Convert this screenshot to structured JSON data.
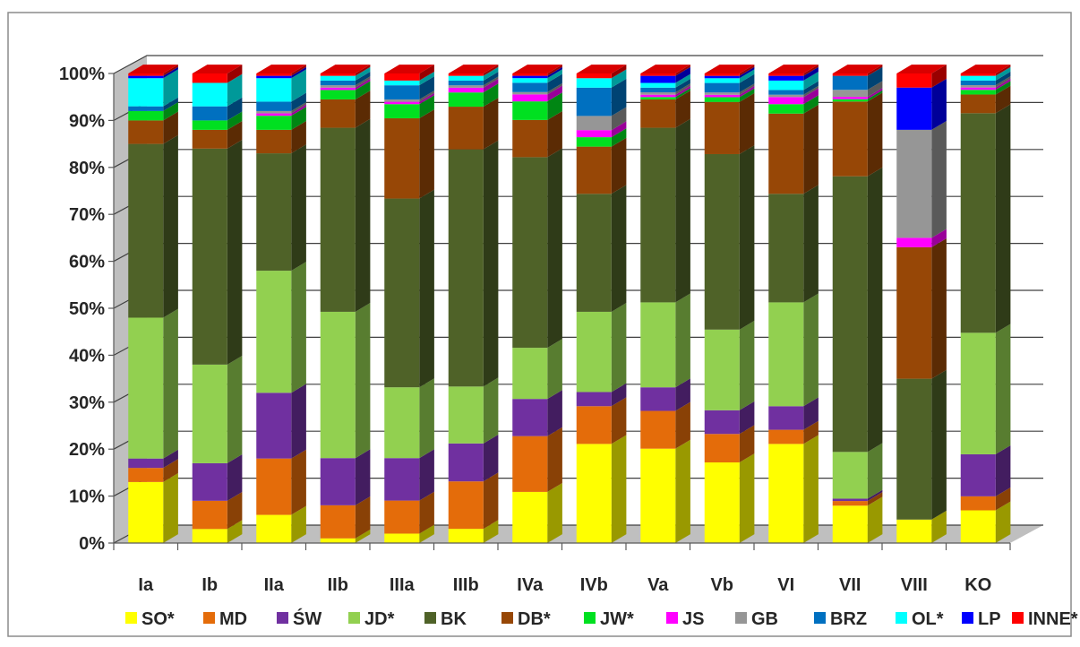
{
  "chart_data": {
    "type": "bar",
    "stacked": true,
    "percent_stacked": true,
    "three_d": true,
    "title": "",
    "xlabel": "",
    "ylabel": "",
    "ylim": [
      0,
      100
    ],
    "y_tick_labels": [
      "0%",
      "10%",
      "20%",
      "30%",
      "40%",
      "50%",
      "60%",
      "70%",
      "80%",
      "90%",
      "100%"
    ],
    "grid": true,
    "legend_position": "bottom",
    "categories": [
      "Ia",
      "Ib",
      "IIa",
      "IIb",
      "IIIa",
      "IIIb",
      "IVa",
      "IVb",
      "Va",
      "Vb",
      "VI",
      "VII",
      "VIII",
      "KO"
    ],
    "series": [
      {
        "name": "SO*",
        "color": "#FFFF00",
        "values": [
          13,
          3,
          6,
          1,
          2,
          3,
          11,
          21,
          20,
          17,
          21,
          8,
          5,
          7
        ]
      },
      {
        "name": "MD",
        "color": "#E46C0A",
        "values": [
          3,
          6,
          12,
          7,
          7,
          10,
          12,
          8,
          8,
          6,
          3,
          1,
          0,
          3
        ]
      },
      {
        "name": "ŚW",
        "color": "#7030A0",
        "values": [
          2,
          8,
          14,
          10,
          9,
          8,
          8,
          3,
          5,
          5,
          5,
          0.5,
          0,
          9
        ]
      },
      {
        "name": "JD*",
        "color": "#92D050",
        "values": [
          30,
          21,
          26,
          31,
          15,
          12,
          11,
          17,
          18,
          17,
          22,
          10,
          0,
          26
        ]
      },
      {
        "name": "BK",
        "color": "#4F6228",
        "values": [
          37,
          46,
          25,
          39,
          40,
          50,
          41,
          25,
          37,
          37,
          23,
          59,
          30,
          47
        ]
      },
      {
        "name": "DB*",
        "color": "#974706",
        "values": [
          5,
          4,
          5,
          6,
          17,
          9,
          8,
          10,
          6,
          11,
          17,
          16,
          28,
          4
        ]
      },
      {
        "name": "JW*",
        "color": "#00E020",
        "values": [
          2,
          2,
          3,
          2,
          3,
          3,
          4,
          2,
          0.5,
          1,
          2,
          0.5,
          0,
          1
        ]
      },
      {
        "name": "JS",
        "color": "#FF00FF",
        "values": [
          0,
          0,
          0.5,
          0.5,
          0.5,
          1,
          1.5,
          1.5,
          0.5,
          0.5,
          1.5,
          0.5,
          2,
          0.5
        ]
      },
      {
        "name": "GB",
        "color": "#969696",
        "values": [
          0,
          0,
          0.5,
          0.5,
          0.5,
          0.5,
          0.5,
          3,
          0.5,
          0.5,
          0.5,
          1.5,
          23,
          0.5
        ]
      },
      {
        "name": "BRZ",
        "color": "#0070C0",
        "values": [
          1,
          3,
          2,
          1,
          3,
          1,
          2,
          6,
          1,
          2,
          1,
          3,
          0,
          1
        ]
      },
      {
        "name": "OL*",
        "color": "#00FFFF",
        "values": [
          6,
          5,
          5,
          1,
          1,
          1,
          1,
          2,
          1,
          1,
          2,
          0,
          0,
          1
        ]
      },
      {
        "name": "LP",
        "color": "#0000FF",
        "values": [
          0.5,
          0,
          0.5,
          0,
          0,
          0,
          0.5,
          0,
          1.5,
          0.5,
          1,
          0,
          9,
          0
        ]
      },
      {
        "name": "INNE*",
        "color": "#FF0000",
        "values": [
          0.5,
          2,
          0.5,
          0.5,
          1.5,
          0.5,
          0.5,
          1,
          0.5,
          0.5,
          0.5,
          0.5,
          3,
          0.5
        ]
      }
    ]
  }
}
